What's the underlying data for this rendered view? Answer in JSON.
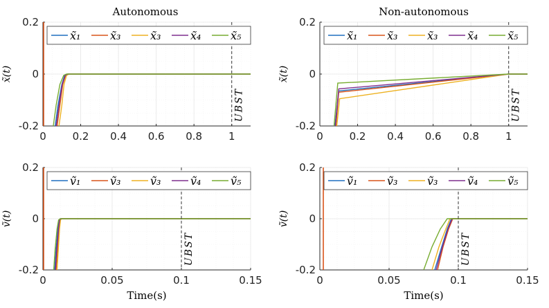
{
  "colors": {
    "s1": "#1f6fbf",
    "s2": "#d95319",
    "s3": "#edb120",
    "s4": "#7e2f8e",
    "s5": "#77ac30",
    "grid": "#e6e6e6",
    "axis": "#262626",
    "marker": "#333333"
  },
  "legend_labels": [
    "x̃₁",
    "x̃₃",
    "x̃₃",
    "x̃₄",
    "x̃₅"
  ],
  "legend_labels_v": [
    "ṽ₁",
    "ṽ₃",
    "ṽ₃",
    "ṽ₄",
    "ṽ₅"
  ],
  "ubst_label": "UBST",
  "time_label": "Time(s)",
  "chart_data": [
    {
      "id": "p1",
      "type": "line",
      "title": "Autonomous",
      "ylabel": "x̃(t)",
      "xlabel": "",
      "xlim": [
        0,
        1.1
      ],
      "ylim": [
        -0.2,
        0.2
      ],
      "xticks": [
        0,
        0.2,
        0.4,
        0.6,
        0.8,
        1
      ],
      "xtick_labels": [
        "0",
        "0.2",
        "0.4",
        "0.6",
        "0.8",
        "1"
      ],
      "yticks": [
        0.2,
        0,
        -0.2
      ],
      "ytick_labels": [
        "0.2",
        "0",
        "-0.2"
      ],
      "ubst_x": 1,
      "legend": "top-left",
      "spike_x": 0,
      "series": [
        {
          "name": "x̃1",
          "points": [
            [
              0.065,
              -0.2
            ],
            [
              0.08,
              -0.12
            ],
            [
              0.1,
              -0.04
            ],
            [
              0.115,
              -0.005
            ],
            [
              0.13,
              0
            ],
            [
              1.1,
              0
            ]
          ]
        },
        {
          "name": "x̃3",
          "points": [
            [
              0.075,
              -0.2
            ],
            [
              0.09,
              -0.12
            ],
            [
              0.105,
              -0.04
            ],
            [
              0.12,
              -0.005
            ],
            [
              0.135,
              0
            ],
            [
              1.1,
              0
            ]
          ]
        },
        {
          "name": "x̃3",
          "points": [
            [
              0.085,
              -0.2
            ],
            [
              0.1,
              -0.12
            ],
            [
              0.112,
              -0.04
            ],
            [
              0.125,
              -0.005
            ],
            [
              0.14,
              0
            ],
            [
              1.1,
              0
            ]
          ]
        },
        {
          "name": "x̃4",
          "points": [
            [
              0.07,
              -0.2
            ],
            [
              0.085,
              -0.12
            ],
            [
              0.102,
              -0.04
            ],
            [
              0.118,
              -0.005
            ],
            [
              0.132,
              0
            ],
            [
              1.1,
              0
            ]
          ]
        },
        {
          "name": "x̃5",
          "points": [
            [
              0.055,
              -0.2
            ],
            [
              0.07,
              -0.12
            ],
            [
              0.09,
              -0.04
            ],
            [
              0.11,
              -0.005
            ],
            [
              0.125,
              0
            ],
            [
              1.1,
              0
            ]
          ]
        }
      ]
    },
    {
      "id": "p2",
      "type": "line",
      "title": "Non-autonomous",
      "ylabel": "x̃(t)",
      "xlabel": "",
      "xlim": [
        0,
        1.1
      ],
      "ylim": [
        -0.2,
        0.2
      ],
      "xticks": [
        0,
        0.2,
        0.4,
        0.6,
        0.8,
        1
      ],
      "xtick_labels": [
        "0",
        "0.2",
        "0.4",
        "0.6",
        "0.8",
        "1"
      ],
      "yticks": [
        0.2,
        0,
        -0.2
      ],
      "ytick_labels": [
        "0.2",
        "0",
        "-0.2"
      ],
      "ubst_x": 1,
      "legend": "top",
      "spike_x": null,
      "series": [
        {
          "name": "x̃1",
          "points": [
            [
              0.08,
              -0.2
            ],
            [
              0.1,
              -0.065
            ],
            [
              1,
              0
            ],
            [
              1.1,
              0
            ]
          ]
        },
        {
          "name": "x̃3",
          "points": [
            [
              0.085,
              -0.2
            ],
            [
              0.1,
              -0.07
            ],
            [
              1,
              0
            ],
            [
              1.1,
              0
            ]
          ]
        },
        {
          "name": "x̃3",
          "points": [
            [
              0.09,
              -0.2
            ],
            [
              0.105,
              -0.095
            ],
            [
              1,
              0
            ],
            [
              1.1,
              0
            ]
          ]
        },
        {
          "name": "x̃4",
          "points": [
            [
              0.082,
              -0.2
            ],
            [
              0.1,
              -0.057
            ],
            [
              1,
              0
            ],
            [
              1.1,
              0
            ]
          ]
        },
        {
          "name": "x̃5",
          "points": [
            [
              0.075,
              -0.2
            ],
            [
              0.095,
              -0.035
            ],
            [
              1,
              0
            ],
            [
              1.1,
              0
            ]
          ]
        }
      ]
    },
    {
      "id": "p3",
      "type": "line",
      "title": "",
      "ylabel": "ṽ(t)",
      "xlabel": "Time(s)",
      "xlim": [
        0,
        0.15
      ],
      "ylim": [
        -0.2,
        0.2
      ],
      "xticks": [
        0,
        0.05,
        0.1,
        0.15
      ],
      "xtick_labels": [
        "0",
        "0.05",
        "0.1",
        "0.15"
      ],
      "yticks": [
        0.2,
        0,
        -0.2
      ],
      "ytick_labels": [
        "0.2",
        "0",
        "-0.2"
      ],
      "ubst_x": 0.1,
      "legend": "top-left",
      "spike_x": 0,
      "series": [
        {
          "name": "ṽ1",
          "points": [
            [
              0.0085,
              -0.2
            ],
            [
              0.0095,
              -0.12
            ],
            [
              0.0108,
              -0.04
            ],
            [
              0.0118,
              -0.005
            ],
            [
              0.0128,
              0
            ],
            [
              0.15,
              0
            ]
          ]
        },
        {
          "name": "ṽ3",
          "points": [
            [
              0.0095,
              -0.2
            ],
            [
              0.0105,
              -0.12
            ],
            [
              0.0115,
              -0.04
            ],
            [
              0.0123,
              -0.005
            ],
            [
              0.0132,
              0
            ],
            [
              0.15,
              0
            ]
          ]
        },
        {
          "name": "ṽ3",
          "points": [
            [
              0.0102,
              -0.2
            ],
            [
              0.0111,
              -0.12
            ],
            [
              0.012,
              -0.04
            ],
            [
              0.0127,
              -0.005
            ],
            [
              0.0135,
              0
            ],
            [
              0.15,
              0
            ]
          ]
        },
        {
          "name": "ṽ4",
          "points": [
            [
              0.009,
              -0.2
            ],
            [
              0.01,
              -0.12
            ],
            [
              0.0112,
              -0.04
            ],
            [
              0.012,
              -0.005
            ],
            [
              0.013,
              0
            ],
            [
              0.15,
              0
            ]
          ]
        },
        {
          "name": "ṽ5",
          "points": [
            [
              0.0078,
              -0.2
            ],
            [
              0.0088,
              -0.12
            ],
            [
              0.0102,
              -0.04
            ],
            [
              0.0113,
              -0.005
            ],
            [
              0.0125,
              0
            ],
            [
              0.15,
              0
            ]
          ]
        }
      ]
    },
    {
      "id": "p4",
      "type": "line",
      "title": "",
      "ylabel": "ṽ(t)",
      "xlabel": "Time(s)",
      "xlim": [
        0,
        0.15
      ],
      "ylim": [
        -0.2,
        0.2
      ],
      "xticks": [
        0,
        0.05,
        0.1,
        0.15
      ],
      "xtick_labels": [
        "0",
        "0.05",
        "0.1",
        "0.15"
      ],
      "yticks": [
        0.2,
        0,
        -0.2
      ],
      "ytick_labels": [
        "0.2",
        "0",
        "-0.2"
      ],
      "ubst_x": 0.1,
      "legend": "top",
      "spike_x": 0.002,
      "series": [
        {
          "name": "ṽ1",
          "points": [
            [
              0.083,
              -0.2
            ],
            [
              0.088,
              -0.11
            ],
            [
              0.092,
              -0.04
            ],
            [
              0.095,
              0
            ],
            [
              0.15,
              0
            ]
          ]
        },
        {
          "name": "ṽ3",
          "points": [
            [
              0.085,
              -0.2
            ],
            [
              0.089,
              -0.11
            ],
            [
              0.093,
              -0.04
            ],
            [
              0.096,
              0
            ],
            [
              0.15,
              0
            ]
          ]
        },
        {
          "name": "ṽ3",
          "points": [
            [
              0.081,
              -0.2
            ],
            [
              0.086,
              -0.11
            ],
            [
              0.091,
              -0.04
            ],
            [
              0.094,
              0
            ],
            [
              0.15,
              0
            ]
          ]
        },
        {
          "name": "ṽ4",
          "points": [
            [
              0.084,
              -0.2
            ],
            [
              0.0885,
              -0.11
            ],
            [
              0.0925,
              -0.04
            ],
            [
              0.0955,
              0
            ],
            [
              0.15,
              0
            ]
          ]
        },
        {
          "name": "ṽ5",
          "points": [
            [
              0.075,
              -0.2
            ],
            [
              0.081,
              -0.11
            ],
            [
              0.087,
              -0.04
            ],
            [
              0.092,
              0
            ],
            [
              0.15,
              0
            ]
          ]
        }
      ]
    }
  ]
}
